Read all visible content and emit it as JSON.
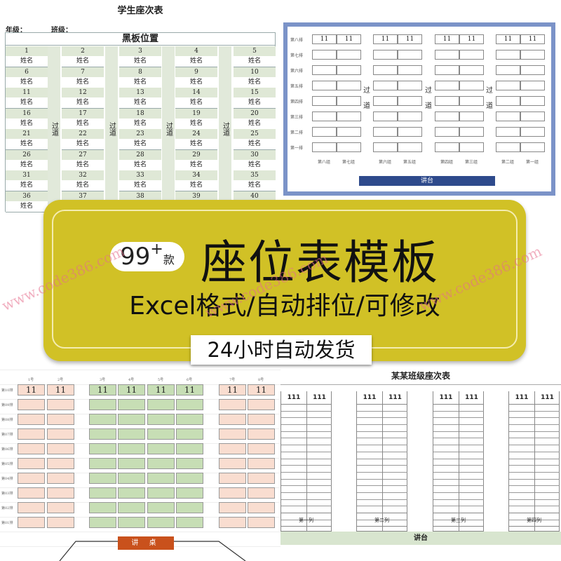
{
  "banner": {
    "count": "99",
    "plus": "+",
    "count_unit": "款",
    "title": "座位表模板",
    "subtitle": "Excel格式/自动排位/可修改",
    "shipping": "24小时自动发货",
    "color": "#d1c126"
  },
  "watermark": "www.code386.com",
  "sheet1": {
    "title": "学生座次表",
    "grade_label": "年级：",
    "class_label": "班级：",
    "board": "黑板位置",
    "aisle": "过道",
    "name_placeholder": "姓名",
    "seat_numbers": [
      1,
      2,
      3,
      4,
      5,
      6,
      7,
      8,
      9,
      10,
      11,
      12,
      13,
      14,
      15,
      16,
      17,
      18,
      19,
      20,
      21,
      22,
      23,
      24,
      25,
      26,
      27,
      28,
      29,
      30,
      31,
      32,
      33,
      34,
      35,
      36,
      37,
      38,
      39,
      40
    ]
  },
  "sheet2": {
    "rows": [
      "第八排",
      "第七排",
      "第六排",
      "第五排",
      "第四排",
      "第三排",
      "第二排",
      "第一排"
    ],
    "groups": [
      "第八组",
      "第七组",
      "第六组",
      "第五组",
      "第四组",
      "第三组",
      "第二组",
      "第一组"
    ],
    "first_row_value": "11",
    "aisle": [
      "过",
      "道"
    ],
    "podium": "讲台",
    "frame_color": "#7b93c8"
  },
  "sheet3": {
    "columns": [
      "1号",
      "2号",
      "3号",
      "4号",
      "5号",
      "6号",
      "7号",
      "8号"
    ],
    "rows": [
      "第10排",
      "第09排",
      "第08排",
      "第07排",
      "第06排",
      "第05排",
      "第04排",
      "第03排",
      "第02排",
      "第01排"
    ],
    "first_row_value": "11",
    "desk": "讲 桌",
    "side_color": "#f9ddd0",
    "middle_color": "#c7deb5"
  },
  "sheet4": {
    "title": "某某班级座次表",
    "header_value": "111",
    "columns": [
      "第一列",
      "第二列",
      "第三列",
      "第四列"
    ],
    "podium": "讲台"
  }
}
